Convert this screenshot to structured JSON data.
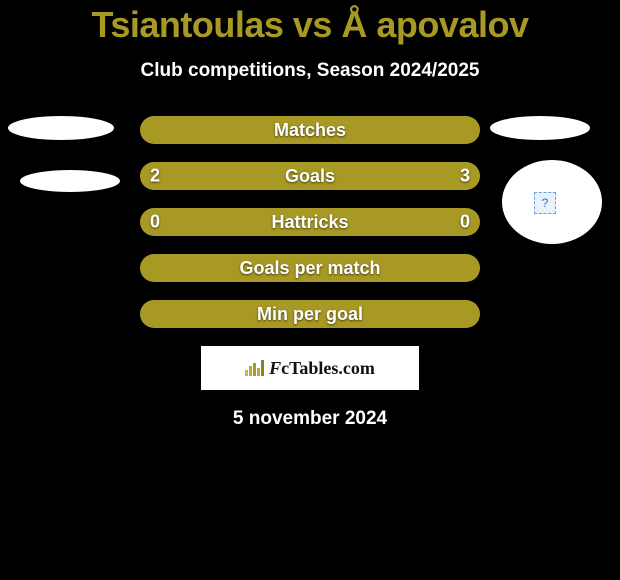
{
  "title": "Tsiantoulas vs Å apovalov",
  "subtitle": "Club competitions, Season 2024/2025",
  "date": "5 november 2024",
  "brand": {
    "text": "FcTables.com"
  },
  "colors": {
    "bar": "#a79924",
    "fill_neutral": "#a79924",
    "title": "#a79924",
    "text": "#ffffff",
    "bg": "#000000",
    "logo_bg": "#ffffff",
    "placeholder_border": "#6aa0d8",
    "placeholder_bg": "#eaf1fb"
  },
  "bars": [
    {
      "label": "Matches",
      "left": null,
      "right": null,
      "left_pct": 0,
      "right_pct": 0
    },
    {
      "label": "Goals",
      "left": "2",
      "right": "3",
      "left_pct": 40,
      "right_pct": 60,
      "left_color": "#a79924",
      "right_color": "#a79924"
    },
    {
      "label": "Hattricks",
      "left": "0",
      "right": "0",
      "left_pct": 0,
      "right_pct": 0
    },
    {
      "label": "Goals per match",
      "left": null,
      "right": null,
      "left_pct": 0,
      "right_pct": 0
    },
    {
      "label": "Min per goal",
      "left": null,
      "right": null,
      "left_pct": 0,
      "right_pct": 0
    }
  ]
}
